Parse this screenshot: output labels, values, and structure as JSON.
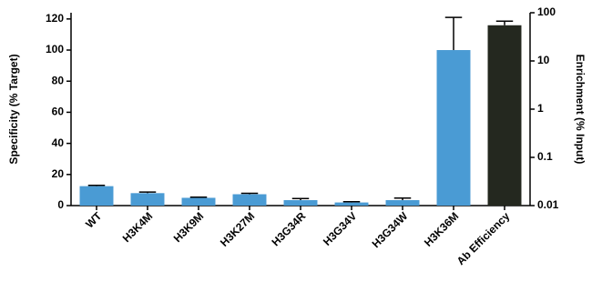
{
  "chart_data": {
    "type": "bar",
    "categories": [
      "WT",
      "H3K4M",
      "H3K9M",
      "H3K27M",
      "H3G34R",
      "H3G34V",
      "H3G34W",
      "H3K36M",
      "Ab Efficiency"
    ],
    "series": [
      {
        "color": "#4a9bd4",
        "values": [
          12.5,
          8,
          5,
          7.3,
          3.5,
          2,
          3.5,
          100,
          null
        ],
        "errors": [
          0.5,
          0.7,
          0.4,
          0.6,
          1,
          0.5,
          1.3,
          21,
          null
        ]
      },
      {
        "color": "#24281f",
        "axis": "y2",
        "values": [
          null,
          null,
          null,
          null,
          null,
          null,
          null,
          null,
          55
        ],
        "errors": [
          null,
          null,
          null,
          null,
          null,
          null,
          null,
          null,
          12
        ]
      }
    ],
    "ylabel": "Specificity (% Target)",
    "y2label": "Enrichment (% Input)",
    "ylim": [
      0,
      124
    ],
    "yticks": [
      0,
      20,
      40,
      60,
      80,
      100,
      120
    ],
    "y2lim": [
      0.01,
      100
    ],
    "y2ticks": [
      0.01,
      0.1,
      1,
      10,
      100
    ],
    "y2log": true
  }
}
